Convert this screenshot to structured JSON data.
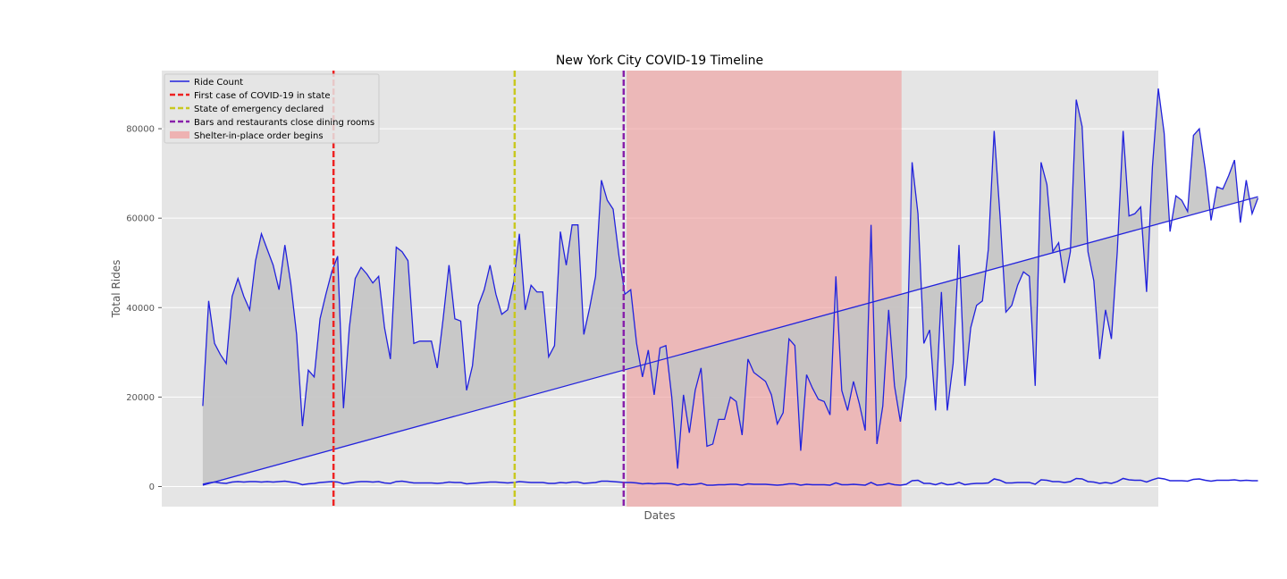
{
  "chart_data": {
    "type": "line",
    "title": "New York City COVID-19 Timeline",
    "xlabel": "Dates",
    "ylabel": "Total Rides",
    "ylim": [
      -4500,
      93000
    ],
    "xlim": [
      -7,
      163
    ],
    "yticks": [
      0,
      20000,
      40000,
      60000,
      80000
    ],
    "grid": true,
    "legend_position": "top-left",
    "colors": {
      "series": "#2222dd",
      "fill": "#c4c4c4",
      "plot_bg": "#e5e5e5",
      "first_case": "#ee2222",
      "emergency": "#c8c820",
      "bars_close": "#8820aa",
      "shelter": "#f0a0a0"
    },
    "series": [
      {
        "name": "Ride Count",
        "values": [
          18000,
          41500,
          32000,
          29500,
          27500,
          42500,
          46500,
          42500,
          39500,
          50500,
          56500,
          53000,
          49500,
          44000,
          54000,
          45500,
          34000,
          13500,
          26000,
          24500,
          37500,
          43000,
          48000,
          51500,
          17500,
          35500,
          46500,
          49000,
          47500,
          45500,
          47000,
          35500,
          28500,
          53500,
          52500,
          50500,
          32000,
          32500,
          32500,
          32500,
          26500,
          37500,
          49500,
          37500,
          37000,
          21500,
          27000,
          40500,
          44000,
          49500,
          43000,
          38500,
          39500,
          45500,
          56500,
          39500,
          45000,
          43500,
          43500,
          29000,
          31500,
          57000,
          49500,
          58500,
          58500,
          34000,
          40000,
          47000,
          68500,
          64000,
          62000,
          51500,
          43000,
          44000,
          32000,
          24500,
          30500,
          20500,
          31000,
          31500,
          20000,
          4000,
          20500,
          12000,
          21500,
          26500,
          9000,
          9500,
          15000,
          15000,
          20000,
          19000,
          11500,
          28500,
          25500,
          24500,
          23500,
          20500,
          14000,
          16500,
          33000,
          31500,
          8000,
          25000,
          22000,
          19500,
          19000,
          16000,
          47000,
          21500,
          17000,
          23500,
          18500,
          12500,
          58500,
          9500,
          18000,
          39500,
          22500,
          14500,
          24500,
          72500,
          61000,
          32000,
          35000,
          17000,
          43500,
          17000,
          27500,
          54000,
          22500,
          35500,
          40500,
          41500,
          53000,
          79500,
          60500,
          39000,
          40500,
          45000,
          48000,
          47000,
          22500,
          72500,
          67500,
          52500,
          54500,
          45500,
          52500,
          86500,
          80500,
          52500,
          46000,
          28500,
          39500,
          33000,
          52500,
          79500,
          60500,
          61000,
          62500,
          43500,
          71500,
          89000,
          79000,
          57000,
          65000,
          64000,
          61500,
          78500,
          80000,
          71000,
          59500,
          67000,
          66500,
          69500,
          73000,
          59000,
          68500,
          61000,
          64500
        ]
      }
    ],
    "trend": {
      "start": 300,
      "end": 64800
    },
    "baseline": [
      500,
      800,
      1000,
      800,
      700,
      1000,
      1100,
      1000,
      1100,
      1100,
      1000,
      1100,
      1000,
      1100,
      1200,
      1000,
      800,
      400,
      600,
      700,
      900,
      1000,
      1100,
      1000,
      600,
      800,
      1000,
      1100,
      1100,
      1000,
      1100,
      800,
      700,
      1100,
      1200,
      1000,
      800,
      800,
      800,
      800,
      700,
      800,
      1000,
      900,
      900,
      600,
      700,
      800,
      900,
      1000,
      1000,
      900,
      800,
      900,
      1100,
      1000,
      900,
      900,
      900,
      700,
      700,
      900,
      800,
      1000,
      1000,
      700,
      800,
      900,
      1200,
      1200,
      1100,
      1000,
      900,
      900,
      800,
      600,
      700,
      600,
      700,
      700,
      600,
      300,
      600,
      400,
      500,
      700,
      300,
      300,
      400,
      400,
      500,
      500,
      300,
      600,
      500,
      500,
      500,
      400,
      300,
      400,
      600,
      600,
      300,
      500,
      400,
      400,
      400,
      300,
      800,
      400,
      400,
      500,
      400,
      300,
      900,
      300,
      400,
      700,
      400,
      300,
      500,
      1300,
      1400,
      700,
      700,
      400,
      800,
      400,
      500,
      900,
      400,
      600,
      700,
      700,
      800,
      1700,
      1400,
      800,
      800,
      900,
      900,
      900,
      500,
      1500,
      1400,
      1100,
      1100,
      900,
      1100,
      1800,
      1700,
      1100,
      1000,
      700,
      900,
      700,
      1100,
      1800,
      1500,
      1400,
      1400,
      1000,
      1500,
      1900,
      1700,
      1300,
      1300,
      1300,
      1200,
      1600,
      1700,
      1400,
      1200,
      1400,
      1400,
      1400,
      1500,
      1300,
      1400,
      1300,
      1300
    ],
    "events": [
      {
        "name": "First case of COVID-19 in state",
        "x": 22.3,
        "color": "#ee2222"
      },
      {
        "name": "State of emergency declared",
        "x": 53.2,
        "color": "#c8c820"
      },
      {
        "name": "Bars and restaurants close dining rooms",
        "x": 71.8,
        "color": "#8820aa"
      }
    ],
    "shelter_span": {
      "name": "Shelter-in-place order begins",
      "x0": 72.3,
      "x1": 119.2
    }
  }
}
